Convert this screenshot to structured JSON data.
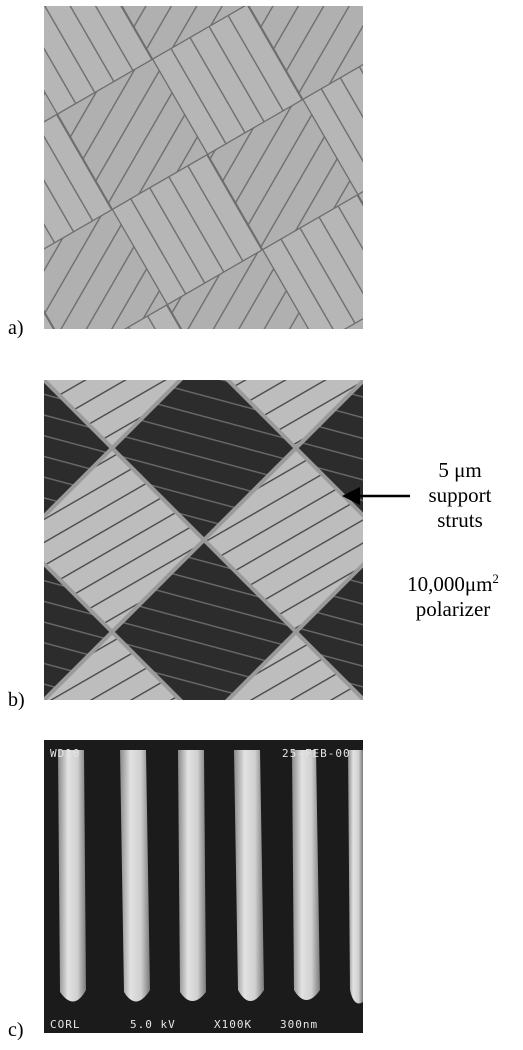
{
  "panels": [
    {
      "label": "a)"
    },
    {
      "label": "b)"
    },
    {
      "label": "c)"
    }
  ],
  "annotations": {
    "support_size": "5 μm",
    "support_line2": "support",
    "support_line3": "struts",
    "polarizer_area_value": "10,000",
    "polarizer_area_unit": "μm",
    "polarizer_area_exp": "2",
    "polarizer_label": "polarizer"
  },
  "sem_overlay": {
    "wd": "WD10",
    "date": "25-FEB-00",
    "source": "CORL",
    "voltage": "5.0 kV",
    "magnification": "X100K",
    "scale": "300nm"
  },
  "colors": {
    "panel_a_light": "#b4b4b4",
    "panel_b_dark": "#2c2c2c",
    "panel_b_light": "#bcbcbc",
    "panel_c_bg": "#1a1a1a",
    "panel_c_wire": "#d8d8d8"
  }
}
